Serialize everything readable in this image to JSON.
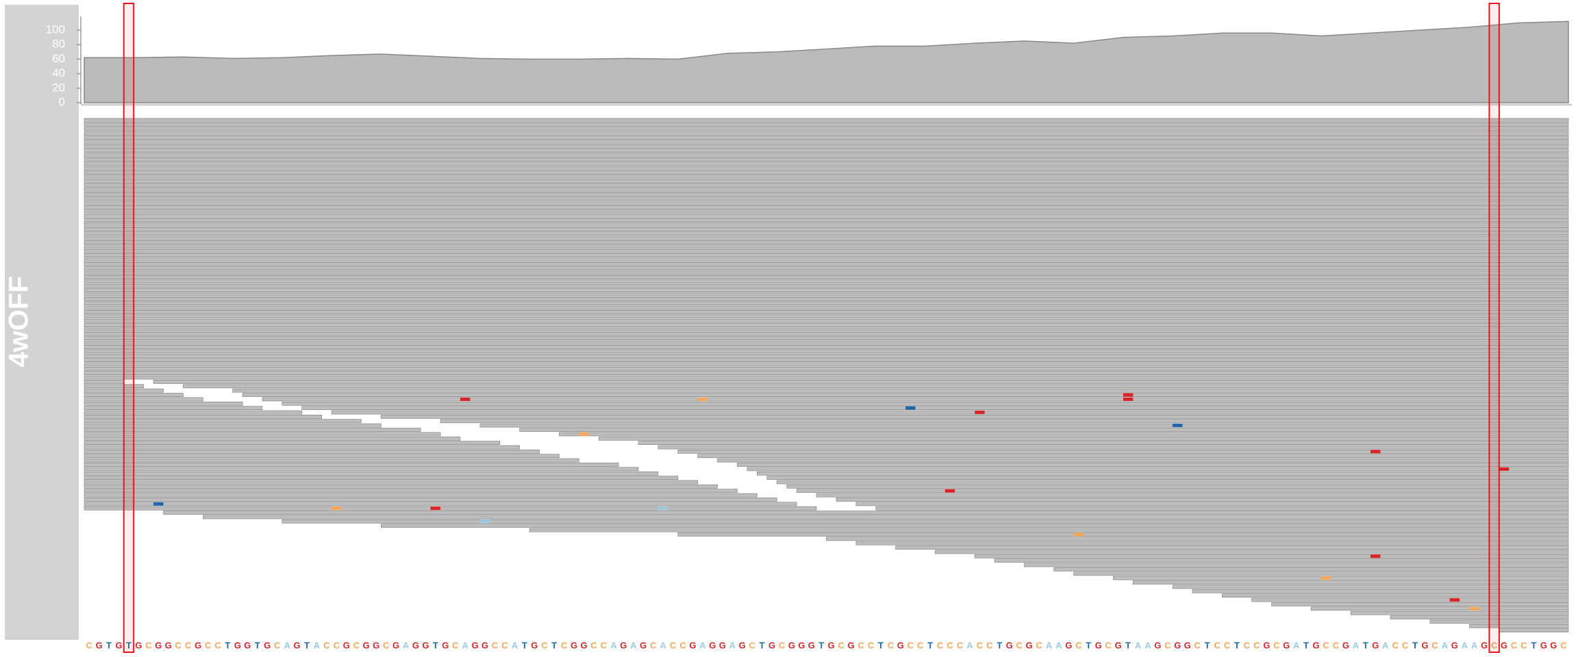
{
  "chart_data": {
    "type": "pileup",
    "track_label": "4wOFF",
    "xlim": [
      0,
      150
    ],
    "ylim": [
      0,
      117
    ],
    "yticks": [
      0,
      20,
      40,
      60,
      80,
      100
    ],
    "coverage_color": "#bbbbbb",
    "read_color": "#bdbdbd",
    "highlight_color": "#e8141c",
    "base_colors": {
      "A": "#9ecae1",
      "C": "#f5a85a",
      "G": "#d62728",
      "T": "#2166ac"
    },
    "coverage": {
      "x": [
        0,
        5,
        10,
        15,
        20,
        25,
        30,
        35,
        40,
        45,
        50,
        55,
        60,
        65,
        70,
        75,
        80,
        85,
        90,
        95,
        100,
        105,
        110,
        115,
        120,
        125,
        130,
        135,
        140,
        145,
        150
      ],
      "values": [
        62,
        62,
        63,
        61,
        62,
        65,
        67,
        64,
        61,
        60,
        60,
        61,
        60,
        68,
        70,
        74,
        78,
        78,
        82,
        85,
        82,
        90,
        92,
        96,
        96,
        92,
        96,
        100,
        104,
        110,
        112
      ]
    },
    "highlights": [
      4,
      142
    ],
    "sequence": [
      "C",
      "G",
      "T",
      "G",
      "T",
      "G",
      "C",
      "G",
      "G",
      "C",
      "C",
      "G",
      "C",
      "C",
      "T",
      "G",
      "G",
      "T",
      "G",
      "C",
      "A",
      "G",
      "T",
      "A",
      "C",
      "C",
      "G",
      "C",
      "G",
      "G",
      "C",
      "G",
      "A",
      "G",
      "G",
      "T",
      "G",
      "C",
      "A",
      "G",
      "G",
      "C",
      "C",
      "A",
      "T",
      "G",
      "C",
      "T",
      "C",
      "G",
      "G",
      "C",
      "C",
      "A",
      "G",
      "A",
      "G",
      "C",
      "A",
      "C",
      "C",
      "G",
      "A",
      "G",
      "G",
      "A",
      "G",
      "C",
      "T",
      "G",
      "C",
      "G",
      "G",
      "G",
      "T",
      "G",
      "C",
      "G",
      "C",
      "C",
      "T",
      "C",
      "G",
      "C",
      "C",
      "T",
      "C",
      "C",
      "C",
      "A",
      "C",
      "C",
      "T",
      "G",
      "C",
      "G",
      "C",
      "A",
      "A",
      "G",
      "C",
      "T",
      "G",
      "C",
      "G",
      "T",
      "A",
      "A",
      "G",
      "C",
      "G",
      "G",
      "C",
      "T",
      "C",
      "C",
      "T",
      "C",
      "C",
      "G",
      "C",
      "G",
      "A",
      "T",
      "G",
      "C",
      "C",
      "G",
      "A",
      "T",
      "G",
      "A",
      "C",
      "C",
      "T",
      "G",
      "C",
      "A",
      "G",
      "A",
      "A",
      "G",
      "C",
      "G",
      "C",
      "C",
      "T",
      "G",
      "G",
      "C"
    ],
    "read_rows": [
      [
        [
          0,
          150
        ]
      ],
      [
        [
          0,
          150
        ]
      ],
      [
        [
          0,
          150
        ]
      ],
      [
        [
          0,
          150
        ]
      ],
      [
        [
          0,
          150
        ]
      ],
      [
        [
          0,
          150
        ]
      ],
      [
        [
          0,
          150
        ]
      ],
      [
        [
          0,
          150
        ]
      ],
      [
        [
          0,
          150
        ]
      ],
      [
        [
          0,
          150
        ]
      ],
      [
        [
          0,
          150
        ]
      ],
      [
        [
          0,
          150
        ]
      ],
      [
        [
          0,
          150
        ]
      ],
      [
        [
          0,
          150
        ]
      ],
      [
        [
          0,
          150
        ]
      ],
      [
        [
          0,
          150
        ]
      ],
      [
        [
          0,
          150
        ]
      ],
      [
        [
          0,
          150
        ]
      ],
      [
        [
          0,
          150
        ]
      ],
      [
        [
          0,
          150
        ]
      ],
      [
        [
          0,
          150
        ]
      ],
      [
        [
          0,
          150
        ]
      ],
      [
        [
          0,
          150
        ]
      ],
      [
        [
          0,
          150
        ]
      ],
      [
        [
          0,
          150
        ]
      ],
      [
        [
          0,
          150
        ]
      ],
      [
        [
          0,
          150
        ]
      ],
      [
        [
          0,
          150
        ]
      ],
      [
        [
          0,
          150
        ]
      ],
      [
        [
          0,
          150
        ]
      ],
      [
        [
          0,
          150
        ]
      ],
      [
        [
          0,
          150
        ]
      ],
      [
        [
          0,
          150
        ]
      ],
      [
        [
          0,
          150
        ]
      ],
      [
        [
          0,
          150
        ]
      ],
      [
        [
          0,
          150
        ]
      ],
      [
        [
          0,
          150
        ]
      ],
      [
        [
          0,
          150
        ]
      ],
      [
        [
          0,
          150
        ]
      ],
      [
        [
          0,
          150
        ]
      ],
      [
        [
          0,
          150
        ]
      ],
      [
        [
          0,
          150
        ]
      ],
      [
        [
          0,
          150
        ]
      ],
      [
        [
          0,
          150
        ]
      ],
      [
        [
          0,
          150
        ]
      ],
      [
        [
          0,
          150
        ]
      ],
      [
        [
          0,
          150
        ]
      ],
      [
        [
          0,
          150
        ]
      ],
      [
        [
          0,
          150
        ]
      ],
      [
        [
          0,
          150
        ]
      ],
      [
        [
          0,
          150
        ]
      ],
      [
        [
          0,
          150
        ]
      ],
      [
        [
          0,
          150
        ]
      ],
      [
        [
          0,
          150
        ]
      ],
      [
        [
          0,
          150
        ]
      ],
      [
        [
          0,
          150
        ]
      ],
      [
        [
          0,
          150
        ]
      ],
      [
        [
          0,
          150
        ]
      ],
      [
        [
          0,
          150
        ]
      ],
      [
        [
          0,
          150
        ]
      ],
      [
        [
          0,
          4
        ],
        [
          7,
          150
        ]
      ],
      [
        [
          0,
          6
        ],
        [
          10,
          150
        ]
      ],
      [
        [
          0,
          8
        ],
        [
          15,
          150
        ]
      ],
      [
        [
          0,
          10
        ],
        [
          16,
          150
        ]
      ],
      [
        [
          0,
          12
        ],
        [
          18,
          150
        ]
      ],
      [
        [
          0,
          16
        ],
        [
          20,
          150
        ]
      ],
      [
        [
          0,
          18
        ],
        [
          22,
          150
        ]
      ],
      [
        [
          0,
          22
        ],
        [
          25,
          150
        ]
      ],
      [
        [
          0,
          24
        ],
        [
          30,
          150
        ]
      ],
      [
        [
          0,
          28
        ],
        [
          36,
          150
        ]
      ],
      [
        [
          0,
          30
        ],
        [
          40,
          150
        ]
      ],
      [
        [
          0,
          34
        ],
        [
          44,
          150
        ]
      ],
      [
        [
          0,
          36
        ],
        [
          48,
          150
        ]
      ],
      [
        [
          0,
          38
        ],
        [
          52,
          150
        ]
      ],
      [
        [
          0,
          42
        ],
        [
          56,
          150
        ]
      ],
      [
        [
          0,
          44
        ],
        [
          58,
          150
        ]
      ],
      [
        [
          0,
          46
        ],
        [
          60,
          150
        ]
      ],
      [
        [
          0,
          48
        ],
        [
          62,
          150
        ]
      ],
      [
        [
          0,
          50
        ],
        [
          64,
          150
        ]
      ],
      [
        [
          0,
          54
        ],
        [
          66,
          150
        ]
      ],
      [
        [
          0,
          56
        ],
        [
          67,
          150
        ]
      ],
      [
        [
          0,
          58
        ],
        [
          68,
          150
        ]
      ],
      [
        [
          0,
          60
        ],
        [
          69,
          150
        ]
      ],
      [
        [
          0,
          62
        ],
        [
          70,
          150
        ]
      ],
      [
        [
          0,
          64
        ],
        [
          71,
          150
        ]
      ],
      [
        [
          0,
          66
        ],
        [
          72,
          150
        ]
      ],
      [
        [
          0,
          68
        ],
        [
          74,
          150
        ]
      ],
      [
        [
          0,
          70
        ],
        [
          76,
          150
        ]
      ],
      [
        [
          0,
          72
        ],
        [
          78,
          150
        ]
      ],
      [
        [
          0,
          74
        ],
        [
          80,
          150
        ]
      ],
      [
        [
          8,
          150
        ]
      ],
      [
        [
          12,
          150
        ]
      ],
      [
        [
          20,
          150
        ]
      ],
      [
        [
          30,
          150
        ]
      ],
      [
        [
          45,
          150
        ]
      ],
      [
        [
          60,
          150
        ]
      ],
      [
        [
          75,
          150
        ]
      ],
      [
        [
          78,
          150
        ]
      ],
      [
        [
          82,
          150
        ]
      ],
      [
        [
          86,
          150
        ]
      ],
      [
        [
          90,
          150
        ]
      ],
      [
        [
          92,
          150
        ]
      ],
      [
        [
          95,
          150
        ]
      ],
      [
        [
          98,
          150
        ]
      ],
      [
        [
          100,
          150
        ]
      ],
      [
        [
          104,
          150
        ]
      ],
      [
        [
          106,
          150
        ]
      ],
      [
        [
          110,
          150
        ]
      ],
      [
        [
          112,
          150
        ]
      ],
      [
        [
          115,
          150
        ]
      ],
      [
        [
          118,
          150
        ]
      ],
      [
        [
          120,
          150
        ]
      ],
      [
        [
          124,
          150
        ]
      ],
      [
        [
          128,
          150
        ]
      ],
      [
        [
          132,
          150
        ]
      ],
      [
        [
          136,
          150
        ]
      ],
      [
        [
          140,
          150
        ]
      ],
      [
        [
          143,
          150
        ]
      ]
    ],
    "mismatches": [
      {
        "row": 64,
        "pos": 38,
        "base": "G"
      },
      {
        "row": 64,
        "pos": 62,
        "base": "C"
      },
      {
        "row": 66,
        "pos": 83,
        "base": "T"
      },
      {
        "row": 67,
        "pos": 90,
        "base": "G"
      },
      {
        "row": 63,
        "pos": 105,
        "base": "G"
      },
      {
        "row": 64,
        "pos": 105,
        "base": "G"
      },
      {
        "row": 70,
        "pos": 110,
        "base": "T"
      },
      {
        "row": 76,
        "pos": 130,
        "base": "G"
      },
      {
        "row": 80,
        "pos": 143,
        "base": "G"
      },
      {
        "row": 72,
        "pos": 50,
        "base": "C"
      },
      {
        "row": 85,
        "pos": 87,
        "base": "G"
      },
      {
        "row": 88,
        "pos": 7,
        "base": "T"
      },
      {
        "row": 89,
        "pos": 35,
        "base": "G"
      },
      {
        "row": 89,
        "pos": 25,
        "base": "C"
      },
      {
        "row": 89,
        "pos": 58,
        "base": "A"
      },
      {
        "row": 92,
        "pos": 40,
        "base": "A"
      },
      {
        "row": 95,
        "pos": 100,
        "base": "C"
      },
      {
        "row": 100,
        "pos": 130,
        "base": "G"
      },
      {
        "row": 105,
        "pos": 125,
        "base": "C"
      },
      {
        "row": 110,
        "pos": 138,
        "base": "G"
      },
      {
        "row": 112,
        "pos": 140,
        "base": "C"
      }
    ]
  }
}
